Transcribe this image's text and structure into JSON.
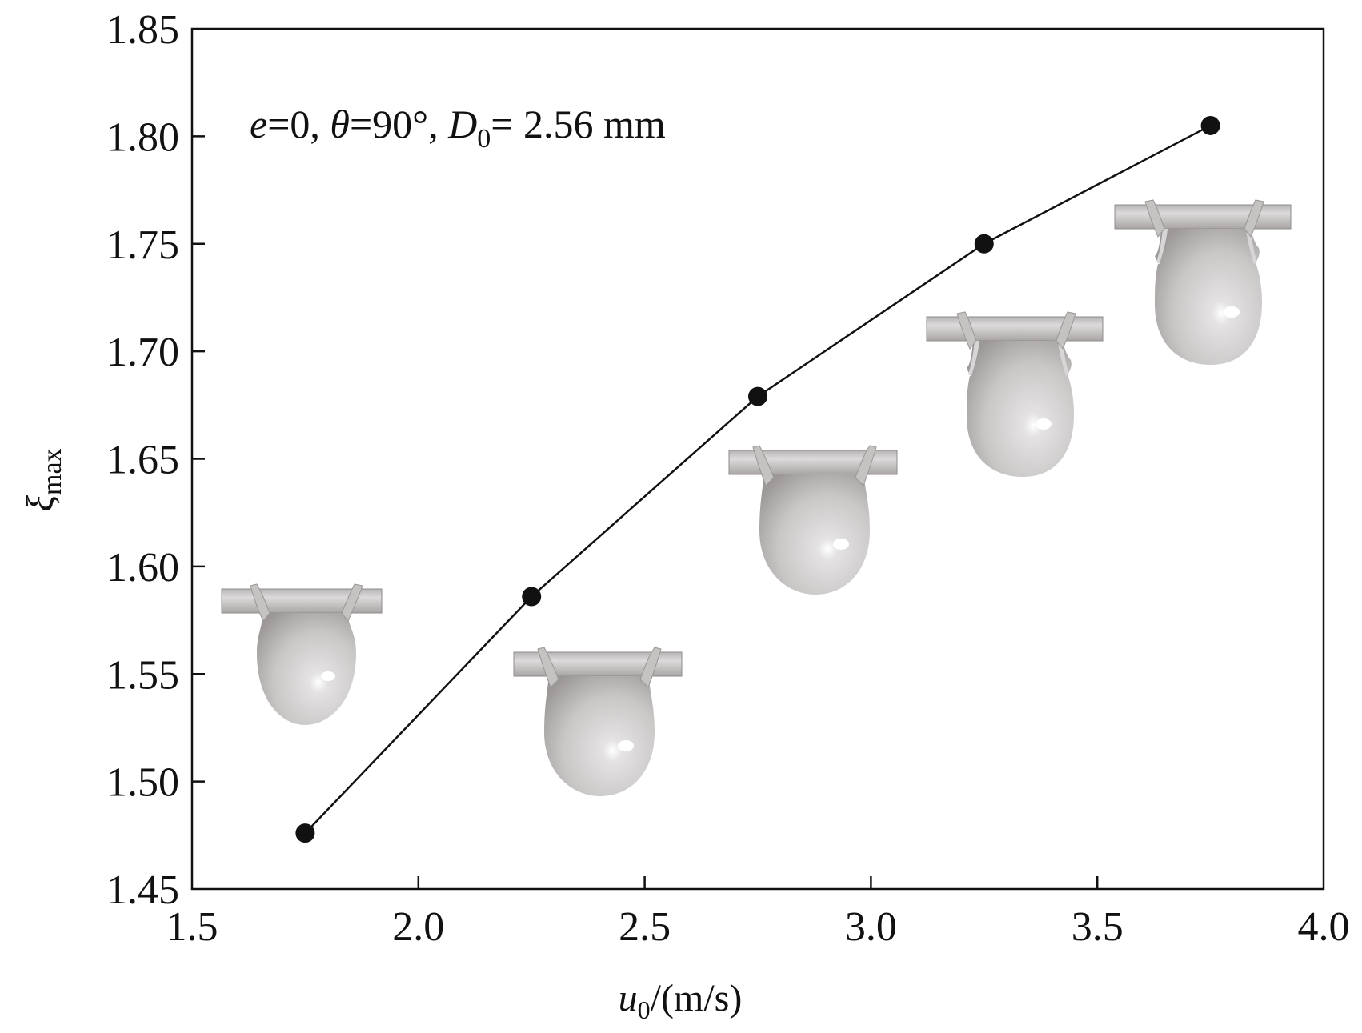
{
  "chart_data": {
    "type": "line",
    "x": [
      1.75,
      2.25,
      2.75,
      3.25,
      3.75
    ],
    "y": [
      1.476,
      1.586,
      1.679,
      1.75,
      1.805
    ],
    "xlim": [
      1.5,
      4.0
    ],
    "ylim": [
      1.45,
      1.85
    ],
    "xticks": [
      "1.5",
      "2.0",
      "2.5",
      "3.0",
      "3.5",
      "4.0"
    ],
    "yticks": [
      "1.45",
      "1.50",
      "1.55",
      "1.60",
      "1.65",
      "1.70",
      "1.75",
      "1.80",
      "1.85"
    ],
    "xlabel": {
      "main": "u",
      "sub": "0",
      "rest": "/(m/s)"
    },
    "ylabel": {
      "main": "ξ",
      "sub": "max"
    },
    "annotation": {
      "e_sym": "e",
      "e_val": "=0, ",
      "theta_sym": "θ",
      "theta_val": "=90°, ",
      "d_sym": "D",
      "d_sub": "0",
      "d_val": "= 2.56 mm"
    },
    "grid": false,
    "line_color": "#111111",
    "marker_color": "#111111",
    "inset_images": [
      "droplet-on-wire-snapshot",
      "droplet-on-wire-snapshot",
      "droplet-on-wire-snapshot",
      "droplet-on-wire-snapshot",
      "droplet-on-wire-snapshot"
    ]
  }
}
